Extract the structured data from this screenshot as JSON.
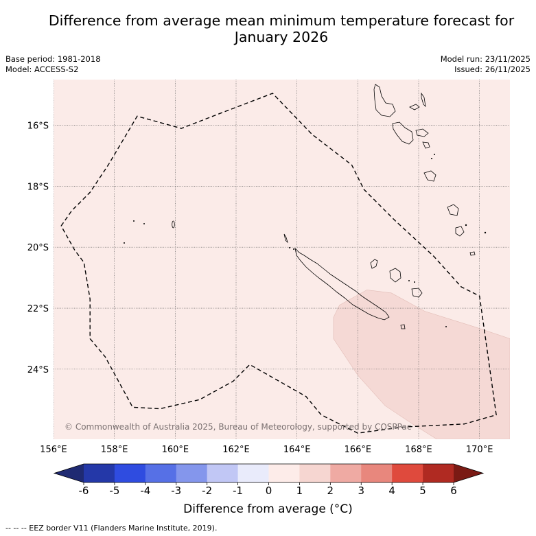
{
  "title_line1": "Difference from average mean minimum temperature forecast for",
  "title_line2": "January 2026",
  "base_period": "Base period: 1981-2018",
  "model": "Model: ACCESS-S2",
  "model_run": "Model run: 23/11/2025",
  "issued": "Issued: 26/11/2025",
  "copyright": "© Commonwealth of Australia 2025, Bureau of Meteorology, supported by COSPPac",
  "footer": "--  --  -- EEZ border V11 (Flanders Marine Institute, 2019).",
  "colors": {
    "background_anomaly": "#fbebe8",
    "anomaly_patch": "#f5d9d5",
    "grid": "#555555",
    "eez": "#000000"
  },
  "map": {
    "lon_range": [
      156,
      171
    ],
    "lat_range": [
      -26.3,
      -14.5
    ],
    "lon_ticks": [
      {
        "value": 156,
        "label": "156°E"
      },
      {
        "value": 158,
        "label": "158°E"
      },
      {
        "value": 160,
        "label": "160°E"
      },
      {
        "value": 162,
        "label": "162°E"
      },
      {
        "value": 164,
        "label": "164°E"
      },
      {
        "value": 166,
        "label": "166°E"
      },
      {
        "value": 168,
        "label": "168°E"
      },
      {
        "value": 170,
        "label": "170°E"
      }
    ],
    "lat_ticks": [
      {
        "value": -16,
        "label": "16°S"
      },
      {
        "value": -18,
        "label": "18°S"
      },
      {
        "value": -20,
        "label": "20°S"
      },
      {
        "value": -22,
        "label": "22°S"
      },
      {
        "value": -24,
        "label": "24°S"
      }
    ],
    "background_category": "0 to 1",
    "patch_category": "1 to 2",
    "eez_border": [
      [
        156.25,
        -19.3
      ],
      [
        156.6,
        -18.8
      ],
      [
        157.2,
        -18.2
      ],
      [
        157.8,
        -17.3
      ],
      [
        158.75,
        -15.7
      ],
      [
        160.2,
        -16.1
      ],
      [
        161.5,
        -15.6
      ],
      [
        163.2,
        -14.95
      ],
      [
        164.5,
        -16.3
      ],
      [
        165.8,
        -17.3
      ],
      [
        166.2,
        -18.1
      ],
      [
        167.2,
        -19.1
      ],
      [
        168.5,
        -20.3
      ],
      [
        169.4,
        -21.3
      ],
      [
        170.0,
        -21.6
      ],
      [
        170.2,
        -23.0
      ],
      [
        170.55,
        -25.5
      ],
      [
        169.5,
        -25.8
      ],
      [
        167.5,
        -25.9
      ],
      [
        166.0,
        -26.1
      ],
      [
        164.8,
        -25.5
      ],
      [
        164.3,
        -24.9
      ],
      [
        163.6,
        -24.5
      ],
      [
        162.45,
        -23.85
      ],
      [
        161.9,
        -24.4
      ],
      [
        160.8,
        -25.0
      ],
      [
        159.5,
        -25.3
      ],
      [
        158.6,
        -25.25
      ],
      [
        157.7,
        -23.6
      ],
      [
        157.2,
        -23.0
      ],
      [
        157.2,
        -21.7
      ],
      [
        157.0,
        -20.5
      ],
      [
        156.7,
        -20.1
      ],
      [
        156.25,
        -19.3
      ]
    ],
    "anomaly_patch_outline": [
      [
        165.4,
        -21.9
      ],
      [
        166.3,
        -21.4
      ],
      [
        167.1,
        -21.5
      ],
      [
        168.2,
        -22.1
      ],
      [
        169.8,
        -22.6
      ],
      [
        171.0,
        -23.0
      ],
      [
        171.0,
        -26.3
      ],
      [
        168.6,
        -26.3
      ],
      [
        167.8,
        -25.8
      ],
      [
        166.9,
        -25.2
      ],
      [
        166.0,
        -24.2
      ],
      [
        165.2,
        -23.0
      ],
      [
        165.2,
        -22.3
      ],
      [
        165.4,
        -21.9
      ]
    ]
  },
  "colorbar": {
    "title": "Difference from average (°C)",
    "bins": [
      {
        "label": "<-6",
        "color": "#1f2a72"
      },
      {
        "label": "-6 to -5",
        "color": "#2438a8"
      },
      {
        "label": "-5 to -4",
        "color": "#2f4ce0"
      },
      {
        "label": "-4 to -3",
        "color": "#5670e6"
      },
      {
        "label": "-3 to -2",
        "color": "#8496ec"
      },
      {
        "label": "-2 to -1",
        "color": "#c1c7f5"
      },
      {
        "label": "-1 to 0",
        "color": "#e9ebfb"
      },
      {
        "label": "0 to 1",
        "color": "#fdece9"
      },
      {
        "label": "1 to 2",
        "color": "#f6d6d1"
      },
      {
        "label": "2 to 3",
        "color": "#efaaa3"
      },
      {
        "label": "3 to 4",
        "color": "#e8877d"
      },
      {
        "label": "4 to 5",
        "color": "#df4a3d"
      },
      {
        "label": "5 to 6",
        "color": "#b02a22"
      },
      {
        "label": ">6",
        "color": "#7a1a14"
      }
    ],
    "tick_labels": [
      "-6",
      "-5",
      "-4",
      "-3",
      "-2",
      "-1",
      "0",
      "1",
      "2",
      "3",
      "4",
      "5",
      "6"
    ]
  }
}
